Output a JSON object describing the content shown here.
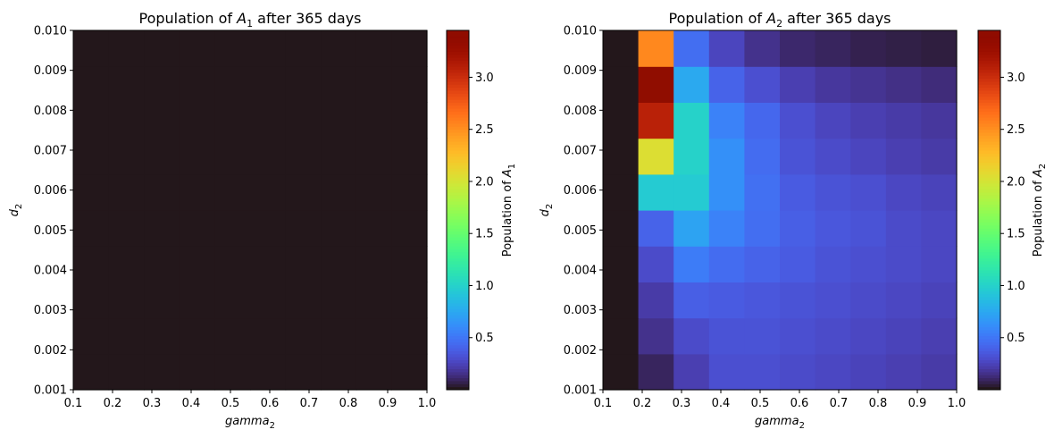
{
  "chart_data": [
    {
      "type": "heatmap",
      "title": "Population of A_1 after 365 days",
      "title_parts": {
        "prefix": "Population of ",
        "var": "A",
        "sub": "1",
        "suffix": " after 365 days"
      },
      "xlabel": {
        "var": "gamma",
        "sub": "2"
      },
      "ylabel": {
        "var": "d",
        "sub": "2"
      },
      "xlim": [
        0.1,
        1.0
      ],
      "ylim": [
        0.001,
        0.01
      ],
      "x_ticks": [
        "0.1",
        "0.2",
        "0.3",
        "0.4",
        "0.5",
        "0.6",
        "0.7",
        "0.8",
        "0.9",
        "1.0"
      ],
      "y_ticks": [
        "0.001",
        "0.002",
        "0.003",
        "0.004",
        "0.005",
        "0.006",
        "0.007",
        "0.008",
        "0.009",
        "0.010"
      ],
      "colorbar": {
        "label_prefix": "Population of ",
        "label_var": "A",
        "label_sub": "1",
        "colormap": "turbo",
        "vmin": 0.0,
        "vmax": 3.45,
        "ticks": [
          "0.5",
          "1.0",
          "1.5",
          "2.0",
          "2.5",
          "3.0"
        ]
      },
      "grid": false,
      "n_cols": 10,
      "n_rows": 10,
      "values": [
        [
          0,
          0,
          0,
          0,
          0,
          0,
          0,
          0,
          0,
          0
        ],
        [
          0,
          0,
          0,
          0,
          0,
          0,
          0,
          0,
          0,
          0
        ],
        [
          0,
          0,
          0,
          0,
          0,
          0,
          0,
          0,
          0,
          0
        ],
        [
          0,
          0,
          0,
          0,
          0,
          0,
          0,
          0,
          0,
          0
        ],
        [
          0,
          0,
          0,
          0,
          0,
          0,
          0,
          0,
          0,
          0
        ],
        [
          0,
          0,
          0,
          0,
          0,
          0,
          0,
          0,
          0,
          0
        ],
        [
          0,
          0,
          0,
          0,
          0,
          0,
          0,
          0,
          0,
          0
        ],
        [
          0,
          0,
          0,
          0,
          0,
          0,
          0,
          0,
          0,
          0
        ],
        [
          0,
          0,
          0,
          0,
          0,
          0,
          0,
          0,
          0,
          0
        ],
        [
          0,
          0,
          0,
          0,
          0,
          0,
          0,
          0,
          0,
          0
        ]
      ]
    },
    {
      "type": "heatmap",
      "title": "Population of A_2 after 365 days",
      "title_parts": {
        "prefix": "Population of ",
        "var": "A",
        "sub": "2",
        "suffix": " after 365 days"
      },
      "xlabel": {
        "var": "gamma",
        "sub": "2"
      },
      "ylabel": {
        "var": "d",
        "sub": "2"
      },
      "xlim": [
        0.1,
        1.0
      ],
      "ylim": [
        0.001,
        0.01
      ],
      "x_ticks": [
        "0.1",
        "0.2",
        "0.3",
        "0.4",
        "0.5",
        "0.6",
        "0.7",
        "0.8",
        "0.9",
        "1.0"
      ],
      "y_ticks": [
        "0.001",
        "0.002",
        "0.003",
        "0.004",
        "0.005",
        "0.006",
        "0.007",
        "0.008",
        "0.009",
        "0.010"
      ],
      "colorbar": {
        "label_prefix": "Population of ",
        "label_var": "A",
        "label_sub": "2",
        "colormap": "turbo",
        "vmin": 0.0,
        "vmax": 3.45,
        "ticks": [
          "0.5",
          "1.0",
          "1.5",
          "2.0",
          "2.5",
          "3.0"
        ]
      },
      "grid": false,
      "n_cols": 10,
      "n_rows": 10,
      "values": [
        [
          0.0,
          0.08,
          0.22,
          0.3,
          0.3,
          0.28,
          0.26,
          0.24,
          0.22,
          0.2
        ],
        [
          0.0,
          0.15,
          0.28,
          0.32,
          0.32,
          0.3,
          0.28,
          0.26,
          0.24,
          0.22
        ],
        [
          0.0,
          0.2,
          0.38,
          0.36,
          0.34,
          0.32,
          0.3,
          0.28,
          0.26,
          0.24
        ],
        [
          0.0,
          0.28,
          0.52,
          0.44,
          0.4,
          0.36,
          0.32,
          0.3,
          0.28,
          0.26
        ],
        [
          0.0,
          0.4,
          0.72,
          0.55,
          0.45,
          0.38,
          0.34,
          0.32,
          0.28,
          0.26
        ],
        [
          0.0,
          0.95,
          0.95,
          0.62,
          0.46,
          0.36,
          0.32,
          0.3,
          0.26,
          0.24
        ],
        [
          0.0,
          2.05,
          1.0,
          0.62,
          0.44,
          0.32,
          0.28,
          0.25,
          0.22,
          0.2
        ],
        [
          0.0,
          3.1,
          1.0,
          0.55,
          0.42,
          0.3,
          0.25,
          0.22,
          0.2,
          0.18
        ],
        [
          0.0,
          3.45,
          0.75,
          0.4,
          0.3,
          0.22,
          0.18,
          0.16,
          0.14,
          0.12
        ],
        [
          0.0,
          2.55,
          0.45,
          0.25,
          0.15,
          0.1,
          0.08,
          0.06,
          0.05,
          0.04
        ]
      ]
    }
  ]
}
